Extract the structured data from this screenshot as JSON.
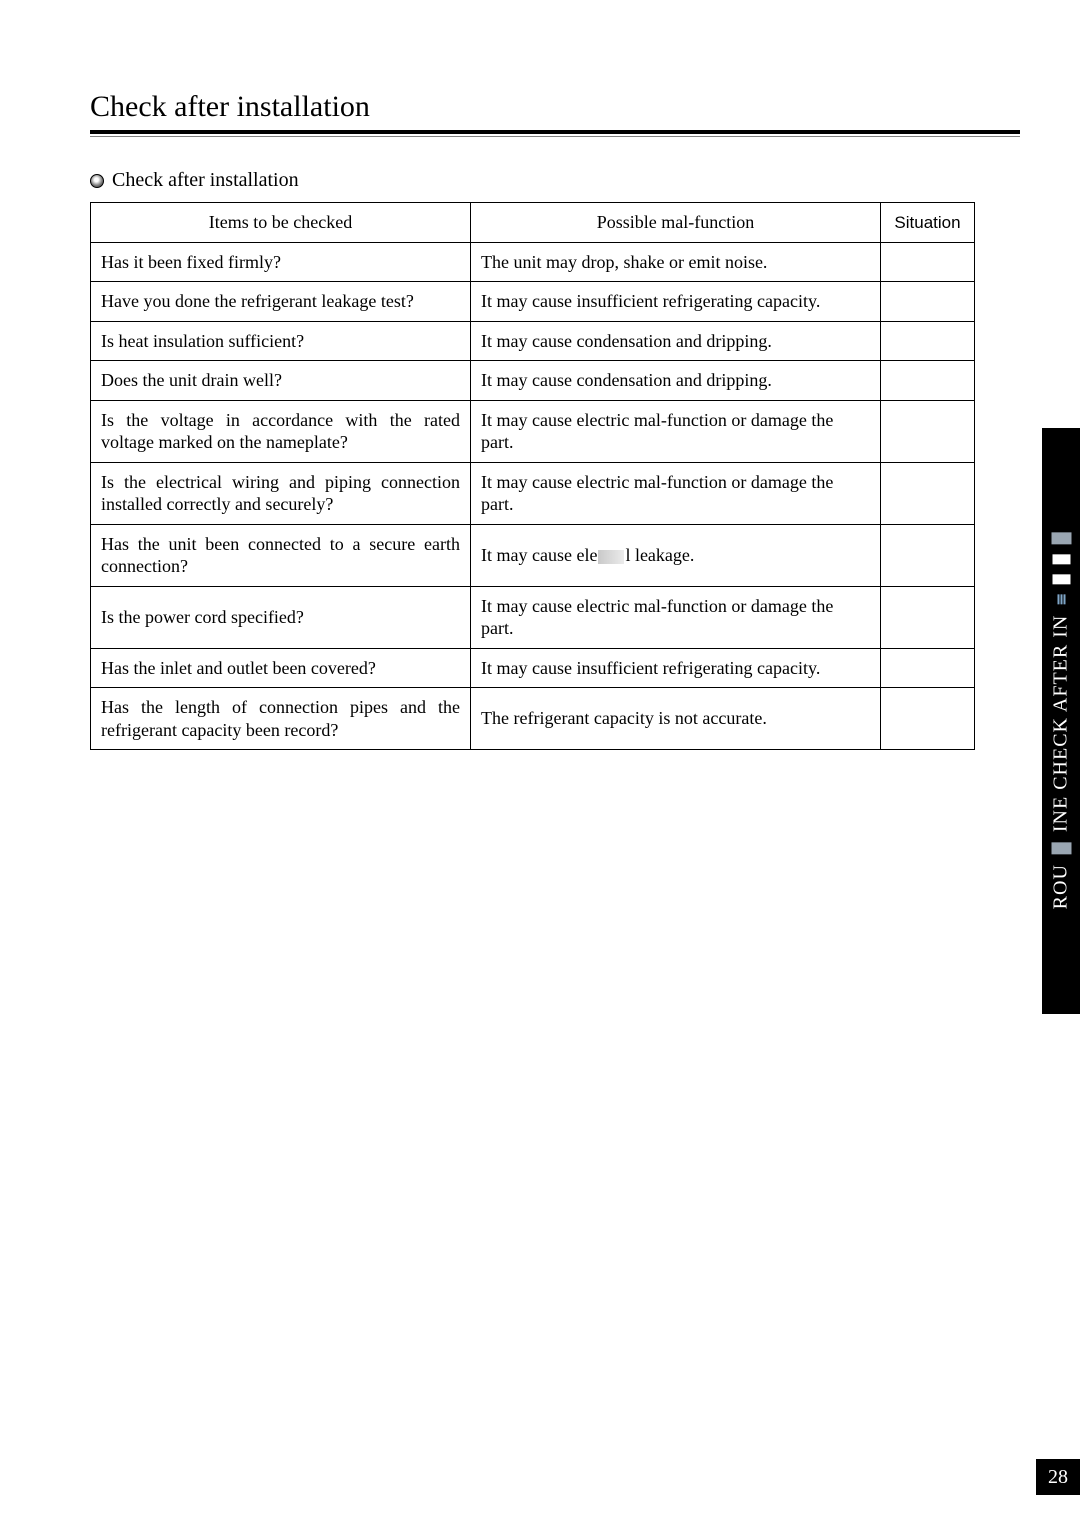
{
  "page_title": "Check after installation",
  "section_title": "Check after installation",
  "table": {
    "headers": {
      "items": "Items to be checked",
      "malfunction": "Possible mal-function",
      "situation": "Situation"
    },
    "rows": [
      {
        "item": "Has it been fixed firmly?",
        "mal": "The unit may drop, shake or emit noise."
      },
      {
        "item": "Have you done the refrigerant leakage test?",
        "mal": "It may cause insufficient refrigerating capacity."
      },
      {
        "item": "Is heat insulation sufficient?",
        "mal": "It may cause condensation and dripping."
      },
      {
        "item": "Does the unit drain well?",
        "mal": "It may cause condensation and dripping."
      },
      {
        "item": "Is the voltage in accordance with the rated voltage marked on the nameplate?",
        "mal": "It may cause electric mal-function or damage the part."
      },
      {
        "item": "Is the electrical wiring and piping connection installed correctly and securely?",
        "mal": "It may cause electric mal-function or damage the part."
      },
      {
        "item": "Has the unit been connected to a secure earth connection?",
        "mal_prefix": "It may cause ele",
        "mal_suffix": "l leakage."
      },
      {
        "item": "Is the power cord specified?",
        "mal": "It may cause electric mal-function or damage the part."
      },
      {
        "item": "Has the inlet and outlet been covered?",
        "mal": "It may cause insufficient refrigerating capacity."
      },
      {
        "item": "Has the length of connection pipes and the refrigerant capacity been record?",
        "mal": "The refrigerant capacity is not accurate."
      }
    ]
  },
  "side_tab": {
    "prefix": "ROU",
    "mid1": "INE  CHECK  AFTER  IN",
    "suffix": ""
  },
  "page_number": "28"
}
